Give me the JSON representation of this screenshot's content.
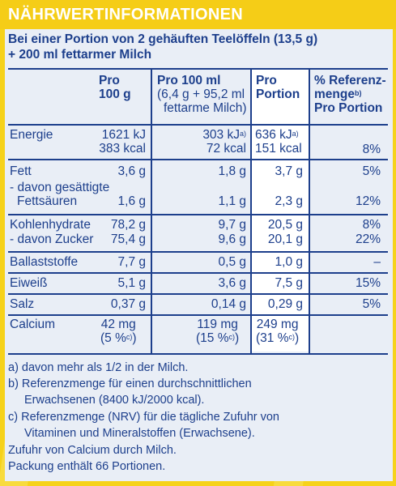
{
  "header": {
    "title": "NÄHRWERTINFORMATIONEN"
  },
  "subtitle": {
    "line1": "Bei einer Portion von 2 gehäuften Teelöffeln (13,5 g)",
    "line2": "+ 200 ml fettarmer Milch"
  },
  "columns": {
    "pro100g_l1": "Pro",
    "pro100g_l2": "100 g",
    "pro100ml_l1": "Pro 100 ml",
    "pro100ml_l2": "(6,4 g + 95,2 ml",
    "pro100ml_l3": "fettarme Milch)",
    "portion_l1": "Pro",
    "portion_l2": "Portion",
    "ref_l1": "% Referenz-",
    "ref_l2": "menge",
    "ref_l2_sup": "b)",
    "ref_l3": "Pro Portion"
  },
  "rows": {
    "energie": {
      "label": "Energie",
      "g_kj": "1621 kJ",
      "g_kcal": "383 kcal",
      "ml_kj": "303 kJ",
      "ml_kj_sup": "a)",
      "ml_kcal": "72 kcal",
      "p_kj": "636 kJ",
      "p_kj_sup": "a)",
      "p_kcal": "151 kcal",
      "ref": "8%"
    },
    "fett": {
      "label": "Fett",
      "g": "3,6 g",
      "ml": "1,8 g",
      "p": "3,7 g",
      "ref": "5%"
    },
    "gesaettigt": {
      "label1": "- davon gesättigte",
      "label2": "Fettsäuren",
      "g": "1,6 g",
      "ml": "1,1 g",
      "p": "2,3 g",
      "ref": "12%"
    },
    "kohlenhydrate": {
      "label": "Kohlenhydrate",
      "g": "78,2 g",
      "ml": "9,7 g",
      "p": "20,5 g",
      "ref": "8%"
    },
    "zucker": {
      "label": "- davon Zucker",
      "g": "75,4 g",
      "ml": "9,6 g",
      "p": "20,1 g",
      "ref": "22%"
    },
    "ballaststoffe": {
      "label": "Ballaststoffe",
      "g": "7,7 g",
      "ml": "0,5 g",
      "p": "1,0 g",
      "ref": "–"
    },
    "eiweiss": {
      "label": "Eiweiß",
      "g": "5,1 g",
      "ml": "3,6 g",
      "p": "7,5 g",
      "ref": "15%"
    },
    "salz": {
      "label": "Salz",
      "g": "0,37 g",
      "ml": "0,14 g",
      "p": "0,29 g",
      "ref": "5%"
    },
    "calcium": {
      "label": "Calcium",
      "g": "42 mg",
      "g_pct": "(5 %",
      "g_sup": "c)",
      "g_close": ")",
      "ml": "119 mg",
      "ml_pct": "(15 %",
      "ml_sup": "c)",
      "ml_close": ")",
      "p": "249 mg",
      "p_pct": "(31 %",
      "p_sup": "c)",
      "p_close": ")"
    }
  },
  "footnotes": {
    "a": "a) davon mehr als 1/2 in der Milch.",
    "b1": "b) Referenzmenge für einen durchschnittlichen",
    "b2": "Erwachsenen (8400 kJ/2000 kcal).",
    "c1": "c) Referenzmenge (NRV) für die tägliche Zufuhr von",
    "c2": "Vitaminen und Mineralstoffen (Erwachsene).",
    "calcium": "Zufuhr von Calcium durch Milch.",
    "pack": "Packung enthält 66 Portionen."
  },
  "colors": {
    "background": "#f6d21a",
    "panel": "#e9eef6",
    "text": "#1d3f8c",
    "highlight": "#ffffff"
  }
}
